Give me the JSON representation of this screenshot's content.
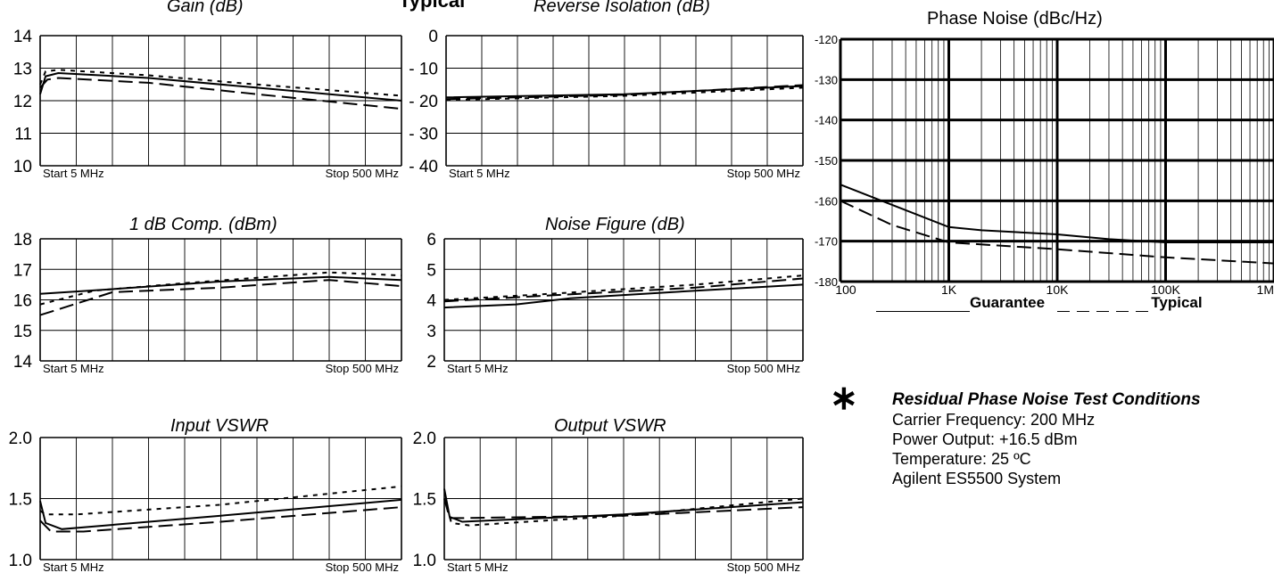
{
  "page": {
    "top_title_fragment": "Typical"
  },
  "phase_noise": {
    "title": "Phase Noise (dBc/Hz)",
    "legend": {
      "guarantee": "Guarantee",
      "typical": "Typical"
    }
  },
  "conditions": {
    "title": "Residual Phase Noise Test Conditions",
    "lines": [
      "Carrier Frequency: 200 MHz",
      "Power Output: +16.5 dBm",
      "Temperature: 25 ºC",
      "Agilent ES5500 System"
    ]
  },
  "chart_data": [
    {
      "type": "line",
      "title": "Gain (dB)",
      "x_labels": {
        "start": "Start  5  MHz",
        "stop": "Stop  500 MHz"
      },
      "ylim": [
        10,
        14
      ],
      "yticks": [
        14,
        13,
        12,
        11,
        10
      ],
      "x": [
        0,
        1
      ],
      "grid": true,
      "series": [
        {
          "style": "solid",
          "points": [
            [
              0,
              12.2
            ],
            [
              0.015,
              12.75
            ],
            [
              0.05,
              12.85
            ],
            [
              0.3,
              12.7
            ],
            [
              0.6,
              12.4
            ],
            [
              1,
              12.0
            ]
          ]
        },
        {
          "style": "dotted",
          "points": [
            [
              0,
              12.5
            ],
            [
              0.015,
              12.9
            ],
            [
              0.05,
              12.95
            ],
            [
              0.3,
              12.78
            ],
            [
              0.6,
              12.5
            ],
            [
              1,
              12.15
            ]
          ]
        },
        {
          "style": "dashed",
          "points": [
            [
              0,
              12.4
            ],
            [
              0.02,
              12.65
            ],
            [
              0.05,
              12.7
            ],
            [
              0.3,
              12.55
            ],
            [
              0.6,
              12.2
            ],
            [
              1,
              11.75
            ]
          ]
        }
      ]
    },
    {
      "type": "line",
      "title": "Reverse Isolation (dB)",
      "x_labels": {
        "start": "Start  5  MHz",
        "stop": "Stop  500 MHz"
      },
      "ylim": [
        -40,
        0
      ],
      "yticks": [
        "0",
        "- 10",
        "- 20",
        "- 30",
        "- 40"
      ],
      "x": [
        0,
        1
      ],
      "grid": true,
      "series": [
        {
          "style": "solid",
          "points": [
            [
              0,
              -19.0
            ],
            [
              0.5,
              -18.0
            ],
            [
              1,
              -15.5
            ]
          ]
        },
        {
          "style": "dotted",
          "points": [
            [
              0,
              -19.8
            ],
            [
              0.5,
              -18.5
            ],
            [
              1,
              -16.0
            ]
          ]
        },
        {
          "style": "dashed",
          "points": [
            [
              0,
              -19.5
            ],
            [
              0.5,
              -18.2
            ],
            [
              1,
              -15.2
            ]
          ]
        }
      ]
    },
    {
      "type": "line",
      "title": "1 dB Comp. (dBm)",
      "x_labels": {
        "start": "Start  5  MHz",
        "stop": "Stop  500 MHz"
      },
      "ylim": [
        14,
        18
      ],
      "yticks": [
        18,
        17,
        16,
        15,
        14
      ],
      "x": [
        0,
        1
      ],
      "grid": true,
      "series": [
        {
          "style": "solid",
          "points": [
            [
              0,
              16.2
            ],
            [
              0.2,
              16.35
            ],
            [
              0.5,
              16.6
            ],
            [
              0.8,
              16.75
            ],
            [
              1,
              16.65
            ]
          ]
        },
        {
          "style": "dotted",
          "points": [
            [
              0,
              15.85
            ],
            [
              0.15,
              16.3
            ],
            [
              0.4,
              16.55
            ],
            [
              0.8,
              16.9
            ],
            [
              1,
              16.8
            ]
          ]
        },
        {
          "style": "dashed",
          "points": [
            [
              0,
              15.5
            ],
            [
              0.12,
              15.95
            ],
            [
              0.2,
              16.25
            ],
            [
              0.5,
              16.4
            ],
            [
              0.8,
              16.65
            ],
            [
              1,
              16.45
            ]
          ]
        }
      ]
    },
    {
      "type": "line",
      "title": "Noise Figure (dB)",
      "x_labels": {
        "start": "Start  5  MHz",
        "stop": "Stop  500 MHz"
      },
      "ylim": [
        2,
        6
      ],
      "yticks": [
        6,
        5,
        4,
        3,
        2
      ],
      "x": [
        0,
        1
      ],
      "grid": true,
      "series": [
        {
          "style": "solid",
          "points": [
            [
              0,
              3.75
            ],
            [
              0.2,
              3.85
            ],
            [
              0.35,
              4.05
            ],
            [
              0.7,
              4.3
            ],
            [
              1,
              4.5
            ]
          ]
        },
        {
          "style": "dotted",
          "points": [
            [
              0,
              4.0
            ],
            [
              0.3,
              4.2
            ],
            [
              0.7,
              4.5
            ],
            [
              1,
              4.8
            ]
          ]
        },
        {
          "style": "dashed",
          "points": [
            [
              0,
              3.95
            ],
            [
              0.3,
              4.15
            ],
            [
              0.7,
              4.4
            ],
            [
              1,
              4.7
            ]
          ]
        }
      ]
    },
    {
      "type": "line",
      "title": "Input VSWR",
      "x_labels": {
        "start": "Start  5  MHz",
        "stop": "Stop  500 MHz"
      },
      "ylim": [
        1.0,
        2.0
      ],
      "yticks": [
        "2.0",
        "1.5",
        "1.0"
      ],
      "x": [
        0,
        1
      ],
      "grid": true,
      "series": [
        {
          "style": "solid",
          "points": [
            [
              0,
              1.48
            ],
            [
              0.015,
              1.3
            ],
            [
              0.06,
              1.25
            ],
            [
              0.5,
              1.36
            ],
            [
              1,
              1.49
            ]
          ]
        },
        {
          "style": "dotted",
          "points": [
            [
              0,
              1.4
            ],
            [
              0.015,
              1.37
            ],
            [
              0.1,
              1.37
            ],
            [
              0.5,
              1.45
            ],
            [
              1,
              1.6
            ]
          ]
        },
        {
          "style": "dashed",
          "points": [
            [
              0,
              1.32
            ],
            [
              0.03,
              1.23
            ],
            [
              0.12,
              1.23
            ],
            [
              0.5,
              1.31
            ],
            [
              1,
              1.43
            ]
          ]
        }
      ]
    },
    {
      "type": "line",
      "title": "Output VSWR",
      "x_labels": {
        "start": "Start  5  MHz",
        "stop": "Stop  500 MHz"
      },
      "ylim": [
        1.0,
        2.0
      ],
      "yticks": [
        "2.0",
        "1.5",
        "1.0"
      ],
      "x": [
        0,
        1
      ],
      "grid": true,
      "series": [
        {
          "style": "solid",
          "points": [
            [
              0,
              1.58
            ],
            [
              0.015,
              1.35
            ],
            [
              0.05,
              1.31
            ],
            [
              0.5,
              1.37
            ],
            [
              1,
              1.47
            ]
          ]
        },
        {
          "style": "dotted",
          "points": [
            [
              0,
              1.5
            ],
            [
              0.02,
              1.3
            ],
            [
              0.07,
              1.28
            ],
            [
              0.5,
              1.36
            ],
            [
              1,
              1.5
            ]
          ]
        },
        {
          "style": "dashed",
          "points": [
            [
              0,
              1.5
            ],
            [
              0.015,
              1.34
            ],
            [
              0.05,
              1.34
            ],
            [
              0.5,
              1.36
            ],
            [
              1,
              1.43
            ]
          ]
        }
      ]
    },
    {
      "type": "line",
      "title": "Phase Noise (dBc/Hz)",
      "x_scale": "log",
      "xlim": [
        100,
        1000000
      ],
      "xticks": [
        "100",
        "1K",
        "10K",
        "100K",
        "1M"
      ],
      "ylim": [
        -180,
        -120
      ],
      "yticks": [
        "-120",
        "-130",
        "-140",
        "-150",
        "-160",
        "-170",
        "-180"
      ],
      "grid": true,
      "series": [
        {
          "name": "Guarantee",
          "style": "solid",
          "points": [
            [
              100,
              -156
            ],
            [
              300,
              -161
            ],
            [
              1000,
              -166.5
            ],
            [
              2000,
              -167.3
            ],
            [
              10000,
              -168.3
            ],
            [
              30000,
              -169.5
            ],
            [
              100000,
              -170.3
            ],
            [
              1000000,
              -170.3
            ]
          ]
        },
        {
          "name": "Typical",
          "style": "dashed",
          "points": [
            [
              100,
              -160
            ],
            [
              300,
              -166
            ],
            [
              1000,
              -170.3
            ],
            [
              10000,
              -172
            ],
            [
              100000,
              -174
            ],
            [
              1000000,
              -175.5
            ]
          ]
        }
      ]
    }
  ]
}
